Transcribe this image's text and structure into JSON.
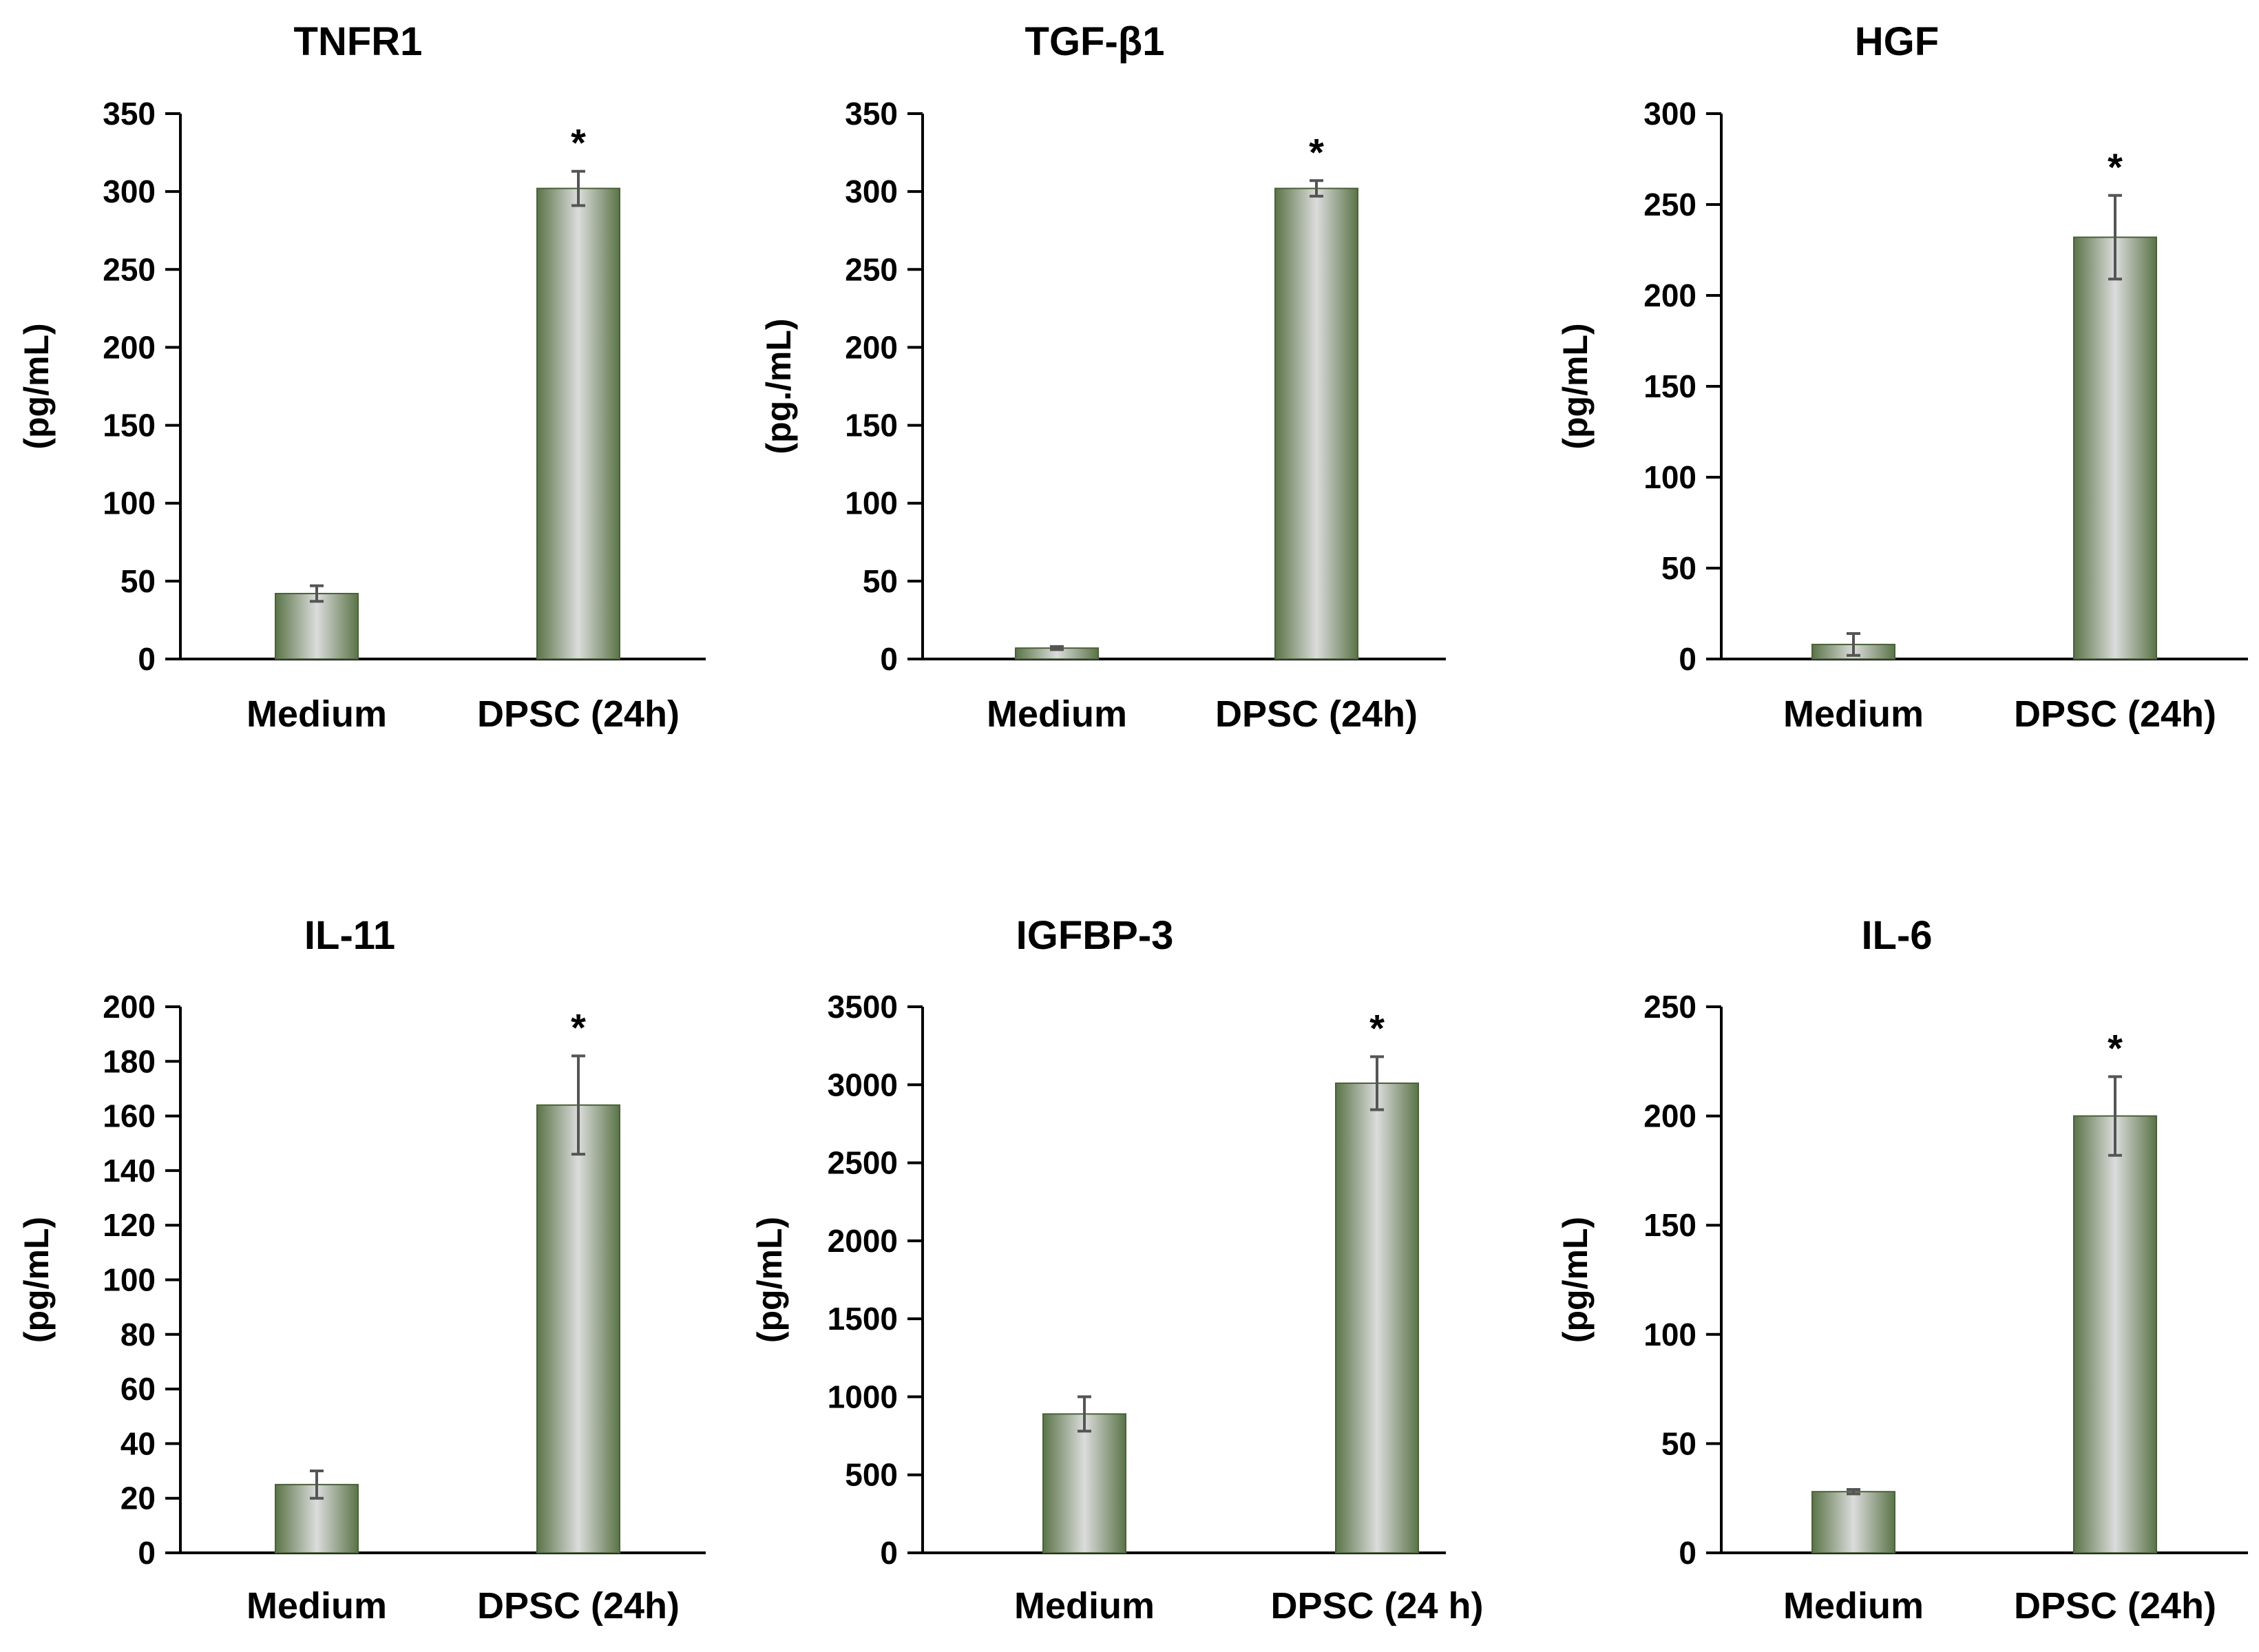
{
  "chart_data": [
    {
      "type": "bar",
      "title": "TNFR1",
      "ylabel": "(pg/mL)",
      "ylim": [
        0,
        350
      ],
      "yticks": [
        "0",
        "50",
        "100",
        "150",
        "200",
        "250",
        "300",
        "350"
      ],
      "categories": [
        "Medium",
        "DPSC (24h)"
      ],
      "values": [
        42,
        302
      ],
      "errors": [
        5,
        11
      ],
      "significance": [
        "",
        "*"
      ]
    },
    {
      "type": "bar",
      "title": "TGF-β1",
      "ylabel": "(pg./mL)",
      "ylim": [
        0,
        350
      ],
      "yticks": [
        "0",
        "50",
        "100",
        "150",
        "200",
        "250",
        "300",
        "350"
      ],
      "categories": [
        "Medium",
        "DPSC (24h)"
      ],
      "values": [
        7,
        302
      ],
      "errors": [
        1,
        5
      ],
      "significance": [
        "",
        "*"
      ]
    },
    {
      "type": "bar",
      "title": "HGF",
      "ylabel": "(pg/mL)",
      "ylim": [
        0,
        300
      ],
      "yticks": [
        "0",
        "50",
        "100",
        "150",
        "200",
        "250",
        "300"
      ],
      "categories": [
        "Medium",
        "DPSC (24h)"
      ],
      "values": [
        8,
        232
      ],
      "errors": [
        6,
        23
      ],
      "significance": [
        "",
        "*"
      ]
    },
    {
      "type": "bar",
      "title": "IL-11",
      "ylabel": "(pg/mL)",
      "ylim": [
        0,
        200
      ],
      "yticks": [
        "0",
        "20",
        "40",
        "60",
        "80",
        "100",
        "120",
        "140",
        "160",
        "180",
        "200"
      ],
      "categories": [
        "Medium",
        "DPSC (24h)"
      ],
      "values": [
        25,
        164
      ],
      "errors": [
        5,
        18
      ],
      "significance": [
        "",
        "*"
      ]
    },
    {
      "type": "bar",
      "title": "IGFBP-3",
      "ylabel": "(pg/mL)",
      "ylim": [
        0,
        3500
      ],
      "yticks": [
        "0",
        "500",
        "1000",
        "1500",
        "2000",
        "2500",
        "3000",
        "3500"
      ],
      "categories": [
        "Medium",
        "DPSC (24 h)"
      ],
      "values": [
        890,
        3010
      ],
      "errors": [
        110,
        170
      ],
      "significance": [
        "",
        "*"
      ]
    },
    {
      "type": "bar",
      "title": "IL-6",
      "ylabel": "(pg/mL)",
      "ylim": [
        0,
        250
      ],
      "yticks": [
        "0",
        "50",
        "100",
        "150",
        "200",
        "250"
      ],
      "categories": [
        "Medium",
        "DPSC (24h)"
      ],
      "values": [
        28,
        200
      ],
      "errors": [
        1,
        18
      ],
      "significance": [
        "",
        "*"
      ]
    }
  ],
  "colors": {
    "bar_dark": "#5a7448",
    "bar_light": "#dcdcdc",
    "bar_stroke": "#4a6138",
    "error_bar": "#555555",
    "axis": "#000000"
  }
}
